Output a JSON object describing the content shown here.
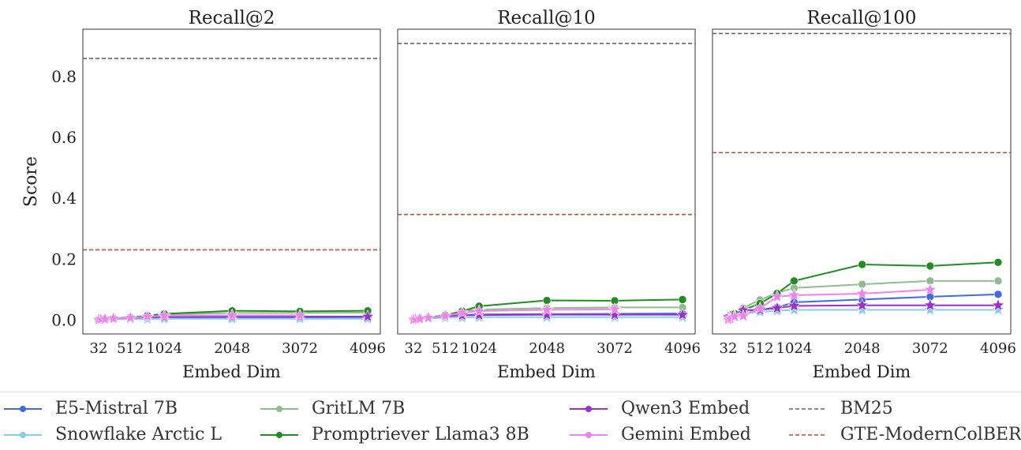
{
  "chart_data": [
    {
      "type": "line",
      "title": "Recall@2",
      "xlabel": "Embed Dim",
      "ylabel": "Score",
      "xticks": [
        32,
        512,
        1024,
        2048,
        3072,
        4096
      ],
      "yticks": [
        "0.0",
        "0.2",
        "0.4",
        "0.6",
        "0.8"
      ],
      "ylim": [
        -0.045,
        0.955
      ],
      "x": [
        32,
        64,
        128,
        256,
        512,
        768,
        1024,
        2048,
        3072,
        4096
      ],
      "series": [
        {
          "name": "E5-Mistral 7B",
          "values": [
            0.002,
            0.003,
            0.004,
            0.005,
            0.006,
            0.007,
            0.008,
            0.009,
            0.009,
            0.01
          ]
        },
        {
          "name": "Snowflake Arctic L",
          "values": [
            0.001,
            0.002,
            0.002,
            0.003,
            0.004,
            0.004,
            0.005,
            0.005,
            0.005,
            0.005
          ]
        },
        {
          "name": "GritLM 7B",
          "values": [
            0.002,
            0.003,
            0.004,
            0.006,
            0.009,
            0.014,
            0.019,
            0.024,
            0.024,
            0.025
          ]
        },
        {
          "name": "Promptriever Llama3 8B",
          "values": [
            0.002,
            0.003,
            0.004,
            0.006,
            0.009,
            0.015,
            0.021,
            0.031,
            0.029,
            0.031
          ]
        },
        {
          "name": "Qwen3 Embed",
          "values": [
            0.002,
            0.003,
            0.004,
            0.006,
            0.008,
            0.01,
            0.011,
            0.012,
            0.012,
            0.012
          ]
        },
        {
          "name": "Gemini Embed",
          "values": [
            0.002,
            0.003,
            0.004,
            0.006,
            0.008,
            0.012,
            0.015,
            0.016,
            0.016,
            null
          ]
        }
      ],
      "baselines": [
        {
          "name": "BM25",
          "value": 0.859
        },
        {
          "name": "GTE-ModernColBERT",
          "value": 0.231
        }
      ]
    },
    {
      "type": "line",
      "title": "Recall@10",
      "xlabel": "Embed Dim",
      "xticks": [
        32,
        512,
        1024,
        2048,
        3072,
        4096
      ],
      "ylim": [
        -0.045,
        0.955
      ],
      "x": [
        32,
        64,
        128,
        256,
        512,
        768,
        1024,
        2048,
        3072,
        4096
      ],
      "series": [
        {
          "name": "E5-Mistral 7B",
          "values": [
            0.003,
            0.004,
            0.006,
            0.009,
            0.013,
            0.017,
            0.019,
            0.02,
            0.021,
            0.022
          ]
        },
        {
          "name": "Snowflake Arctic L",
          "values": [
            0.002,
            0.003,
            0.004,
            0.006,
            0.008,
            0.009,
            0.01,
            0.01,
            0.01,
            0.01
          ]
        },
        {
          "name": "GritLM 7B",
          "values": [
            0.003,
            0.004,
            0.006,
            0.009,
            0.016,
            0.03,
            0.035,
            0.04,
            0.042,
            0.042
          ]
        },
        {
          "name": "Promptriever Llama3 8B",
          "values": [
            0.003,
            0.004,
            0.006,
            0.009,
            0.016,
            0.03,
            0.046,
            0.065,
            0.064,
            0.068
          ]
        },
        {
          "name": "Qwen3 Embed",
          "values": [
            0.003,
            0.004,
            0.006,
            0.009,
            0.013,
            0.016,
            0.017,
            0.018,
            0.018,
            0.018
          ]
        },
        {
          "name": "Gemini Embed",
          "values": [
            0.002,
            0.003,
            0.005,
            0.008,
            0.014,
            0.025,
            0.03,
            0.034,
            0.036,
            null
          ]
        }
      ],
      "baselines": [
        {
          "name": "BM25",
          "value": 0.908
        },
        {
          "name": "GTE-ModernColBERT",
          "value": 0.347
        }
      ]
    },
    {
      "type": "line",
      "title": "Recall@100",
      "xlabel": "Embed Dim",
      "xticks": [
        32,
        512,
        1024,
        2048,
        3072,
        4096
      ],
      "ylim": [
        -0.045,
        0.955
      ],
      "x": [
        32,
        64,
        128,
        256,
        512,
        768,
        1024,
        2048,
        3072,
        4096
      ],
      "series": [
        {
          "name": "E5-Mistral 7B",
          "values": [
            0.008,
            0.013,
            0.02,
            0.03,
            0.035,
            0.042,
            0.059,
            0.068,
            0.077,
            0.085
          ]
        },
        {
          "name": "Snowflake Arctic L",
          "values": [
            0.006,
            0.01,
            0.016,
            0.024,
            0.027,
            0.031,
            0.034,
            0.034,
            0.034,
            0.034
          ]
        },
        {
          "name": "GritLM 7B",
          "values": [
            0.008,
            0.014,
            0.024,
            0.04,
            0.067,
            0.09,
            0.106,
            0.118,
            0.129,
            0.129
          ]
        },
        {
          "name": "Promptriever Llama3 8B",
          "values": [
            0.008,
            0.013,
            0.022,
            0.033,
            0.055,
            0.088,
            0.129,
            0.183,
            0.178,
            0.19
          ]
        },
        {
          "name": "Qwen3 Embed",
          "values": [
            0.01,
            0.013,
            0.016,
            0.033,
            0.034,
            0.04,
            0.047,
            0.049,
            0.049,
            0.049
          ]
        },
        {
          "name": "Gemini Embed",
          "values": [
            0.002,
            0.005,
            0.012,
            0.014,
            0.04,
            0.077,
            0.082,
            0.087,
            0.1,
            null
          ]
        }
      ],
      "baselines": [
        {
          "name": "BM25",
          "value": 0.941
        },
        {
          "name": "GTE-ModernColBERT",
          "value": 0.55
        }
      ]
    }
  ],
  "colors": {
    "E5-Mistral 7B": "#4169e1",
    "Snowflake Arctic L": "#87ceeb",
    "GritLM 7B": "#8fbc8f",
    "Promptriever Llama3 8B": "#228b22",
    "Qwen3 Embed": "#9932cc",
    "Gemini Embed": "#ee82ee",
    "BM25": "#666666",
    "GTE-ModernColBERT": "#b0553a"
  },
  "legend": {
    "items": [
      "E5-Mistral 7B",
      "Snowflake Arctic L",
      "GritLM 7B",
      "Promptriever Llama3 8B",
      "Qwen3 Embed",
      "Gemini Embed",
      "BM25",
      "GTE-ModernColBERT"
    ]
  }
}
